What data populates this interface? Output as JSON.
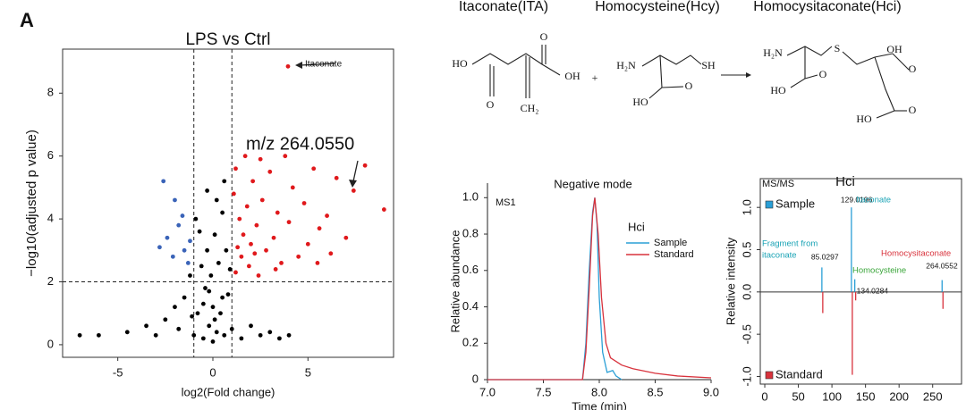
{
  "panel_label": "A",
  "scheme": {
    "titles": [
      "Itaconate(ITA)",
      "Homocysteine(Hcy)",
      "Homocysitaconate(Hci)"
    ],
    "atoms": [
      "HO",
      "O",
      "OH",
      "O",
      "CH₂",
      "+",
      "H₂N",
      "SH",
      "HO",
      "O",
      "H₂N",
      "S",
      "O",
      "OH",
      "HO",
      "O",
      "HO",
      "O"
    ]
  },
  "chart_data": [
    {
      "type": "scatter",
      "title": "LPS vs Ctrl",
      "xlabel": "log2(Fold change)",
      "ylabel": "−log10(adjusted p value)",
      "xlim": [
        -7.9,
        9.5
      ],
      "ylim": [
        -0.4,
        9.4
      ],
      "xticks": [
        -5,
        0,
        5
      ],
      "yticks": [
        0,
        2,
        4,
        6,
        8
      ],
      "vlines": [
        -1,
        1
      ],
      "hlines": [
        2
      ],
      "annotations": [
        "Itaconate",
        "m/z 264.0550"
      ],
      "series": [
        {
          "color": "#000000",
          "x": [
            -7,
            -6,
            -4.5,
            -3.5,
            -3,
            -2.5,
            -2,
            -1.8,
            -1.5,
            -1.2,
            -1,
            -0.8,
            -0.6,
            -0.5,
            -0.4,
            -0.3,
            -0.2,
            -0.1,
            0,
            0,
            0.1,
            0.2,
            0.3,
            0.4,
            0.5,
            0.6,
            0.7,
            0.8,
            0.9,
            1.0,
            -0.7,
            -0.9,
            0.2,
            -0.3,
            0.6,
            1.5,
            2,
            2.5,
            3,
            3.5,
            4,
            -1.1,
            0.5,
            -0.5,
            -0.2,
            0.1
          ],
          "values": [
            0.3,
            0.3,
            0.4,
            0.6,
            0.3,
            0.8,
            1.2,
            0.5,
            1.5,
            2.2,
            0.3,
            1.0,
            2.5,
            0.2,
            1.8,
            3.0,
            0.6,
            2.2,
            0.1,
            1.2,
            3.5,
            0.4,
            2.6,
            1.0,
            4.2,
            0.3,
            3.0,
            1.6,
            2.4,
            0.5,
            3.6,
            4.0,
            4.6,
            4.9,
            5.2,
            0.2,
            0.6,
            0.3,
            0.4,
            0.2,
            0.3,
            0.9,
            1.5,
            1.3,
            1.7,
            0.8
          ]
        },
        {
          "color": "#e0191c",
          "x": [
            1.2,
            1.3,
            1.4,
            1.5,
            1.6,
            1.8,
            1.9,
            2.0,
            2.1,
            2.3,
            2.4,
            2.6,
            2.8,
            3.0,
            3.2,
            3.4,
            3.6,
            3.8,
            4.0,
            4.2,
            4.5,
            4.8,
            5.0,
            5.3,
            5.6,
            6.0,
            6.5,
            7.0,
            7.4,
            8.0,
            9.0,
            1.7,
            2.5,
            3.95,
            1.1,
            1.2,
            2.2,
            3.3,
            5.5,
            6.2
          ],
          "values": [
            2.3,
            3.1,
            4.0,
            2.8,
            3.5,
            4.4,
            2.5,
            3.2,
            5.2,
            3.8,
            2.2,
            4.6,
            3.0,
            5.5,
            3.4,
            4.2,
            2.6,
            6.0,
            3.9,
            5.0,
            2.8,
            4.5,
            3.2,
            5.6,
            3.7,
            4.1,
            5.3,
            3.4,
            4.9,
            5.7,
            4.3,
            6.0,
            5.9,
            8.85,
            4.8,
            5.6,
            2.9,
            2.4,
            2.6,
            2.9
          ]
        },
        {
          "color": "#3a63b8",
          "x": [
            -2.6,
            -2.0,
            -1.8,
            -2.4,
            -1.5,
            -1.3,
            -2.1,
            -1.6,
            -1.2,
            -2.8
          ],
          "values": [
            5.2,
            4.6,
            3.8,
            3.4,
            3.0,
            2.6,
            2.8,
            4.1,
            3.3,
            3.1
          ]
        }
      ]
    },
    {
      "type": "line",
      "title": "Negative mode",
      "xlabel": "Time (min)",
      "ylabel": "Relative abundance",
      "annotation": "MS1",
      "legend_title": "Hci",
      "xlim": [
        7,
        9
      ],
      "ylim": [
        0,
        1.08
      ],
      "xticks": [
        {
          "value": 7,
          "label": "7.0"
        },
        7.5,
        {
          "value": 8,
          "label": "8.0"
        },
        8.5,
        {
          "value": 9,
          "label": "9.0"
        }
      ],
      "yticks": [
        0,
        0.2,
        0.4,
        0.6,
        0.8,
        {
          "value": 1,
          "label": "1.0"
        }
      ],
      "series": [
        {
          "name": "Sample",
          "color": "#2a9fd6",
          "x": [
            7.0,
            7.85,
            7.88,
            7.91,
            7.94,
            7.96,
            7.98,
            8.0,
            8.03,
            8.07,
            8.12,
            8.15,
            8.2
          ],
          "values": [
            0,
            0,
            0.2,
            0.6,
            0.92,
            1.0,
            0.85,
            0.45,
            0.15,
            0.04,
            0.05,
            0.02,
            0
          ]
        },
        {
          "name": "Standard",
          "color": "#d8323c",
          "x": [
            7.0,
            7.85,
            7.88,
            7.91,
            7.94,
            7.96,
            7.99,
            8.02,
            8.06,
            8.1,
            8.2,
            8.3,
            8.5,
            8.7,
            9.0
          ],
          "values": [
            0,
            0,
            0.15,
            0.5,
            0.9,
            1.0,
            0.8,
            0.45,
            0.2,
            0.12,
            0.08,
            0.06,
            0.035,
            0.02,
            0.01
          ]
        }
      ]
    },
    {
      "type": "stem",
      "title": "Hci",
      "annotation": "MS/MS",
      "ylabel": "Relative intensity",
      "xlim": [
        -6.7,
        293
      ],
      "ylim": [
        -1.09,
        1.34
      ],
      "xticks": [
        0,
        50,
        100,
        150,
        200,
        250
      ],
      "yticks": [
        {
          "value": -1,
          "label": "-1.0"
        },
        -0.5,
        {
          "value": 0,
          "label": "0.0"
        },
        0.5,
        {
          "value": 1,
          "label": "1.0"
        }
      ],
      "annotations": [
        {
          "text": "Itaconate",
          "color": "#1aa3b5"
        },
        {
          "text": "Fragment from",
          "color": "#1aa3b5"
        },
        {
          "text": "itaconate",
          "color": "#1aa3b5"
        },
        {
          "text": "Homocysteine",
          "color": "#3aa53a"
        },
        {
          "text": "Homocysitaconate",
          "color": "#d8323c"
        }
      ],
      "series": [
        {
          "name": "Sample",
          "color": "#2a9fd6",
          "x": [
            85.0297,
            129.0196,
            134.0284,
            264.0552
          ],
          "values": [
            0.29,
            1.0,
            0.15,
            0.14
          ]
        },
        {
          "name": "Standard",
          "color": "#d8323c",
          "x": [
            85.0297,
            129.0196,
            134.0284,
            264.0552
          ],
          "values": [
            -0.25,
            -0.98,
            -0.1,
            -0.2
          ]
        }
      ]
    }
  ]
}
